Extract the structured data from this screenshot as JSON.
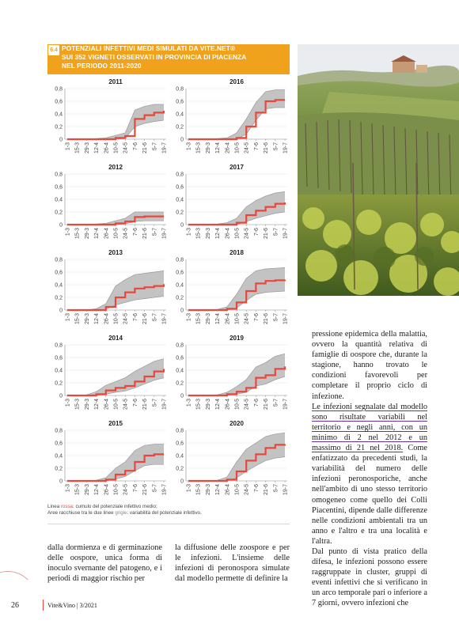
{
  "figure": {
    "badge": "6.4",
    "title_lines": [
      "POTENZIALI INFETTIVI MEDI SIMULATI DA VITE.NET®",
      "SUI 352 VIGNETI OSSERVATI IN PROVINCIA DI PIACENZA",
      "NEL PERIODO 2011-2020"
    ],
    "legend_line1_prefix": "Linea ",
    "legend_line1_color": "rossa",
    "legend_line1_suffix": ": cumulo del potenziale infettivo medio;",
    "legend_line2_prefix": "Aree racchiuse tra le due linee ",
    "legend_line2_color": "grigie",
    "legend_line2_suffix": ": variabilità del potenziale infettivo.",
    "colors": {
      "header": "#f0a21c",
      "mean_line": "#e9473c",
      "band": "#bdbdbd"
    }
  },
  "chart_data": [
    {
      "type": "area",
      "title": "2011",
      "categories": [
        "1-3",
        "15-3",
        "29-3",
        "12-4",
        "26-4",
        "10-5",
        "24-5",
        "7-6",
        "21-6",
        "5-7",
        "19-7"
      ],
      "ylim": [
        0,
        0.8
      ],
      "yticks": [
        "0,8",
        "0,6",
        "0,4",
        "0,2",
        "0"
      ],
      "series": [
        {
          "values": [
            0,
            0,
            0,
            0,
            0,
            0.02,
            0.05,
            0.32,
            0.38,
            0.42,
            0.45
          ]
        },
        {
          "values": [
            0,
            0,
            0,
            0.01,
            0.02,
            0.06,
            0.1,
            0.46,
            0.52,
            0.55,
            0.55
          ]
        },
        {
          "values": [
            0,
            0,
            0,
            0,
            0,
            0,
            0.01,
            0.2,
            0.25,
            0.28,
            0.3
          ]
        }
      ]
    },
    {
      "type": "area",
      "title": "2016",
      "categories": [
        "1-3",
        "15-3",
        "29-3",
        "12-4",
        "26-4",
        "10-5",
        "24-5",
        "7-6",
        "21-6",
        "5-7",
        "19-7"
      ],
      "ylim": [
        0,
        0.8
      ],
      "yticks": [
        "0,8",
        "0,6",
        "0,4",
        "0,2",
        "0"
      ],
      "series": [
        {
          "values": [
            0,
            0,
            0,
            0,
            0,
            0.02,
            0.2,
            0.42,
            0.6,
            0.62,
            0.62
          ]
        },
        {
          "values": [
            0,
            0,
            0,
            0.01,
            0.02,
            0.1,
            0.32,
            0.58,
            0.75,
            0.78,
            0.78
          ]
        },
        {
          "values": [
            0,
            0,
            0,
            0,
            0,
            0,
            0.08,
            0.3,
            0.48,
            0.5,
            0.5
          ]
        }
      ]
    },
    {
      "type": "area",
      "title": "2012",
      "categories": [
        "1-3",
        "15-3",
        "29-3",
        "12-4",
        "26-4",
        "10-5",
        "24-5",
        "7-6",
        "21-6",
        "5-7",
        "19-7"
      ],
      "ylim": [
        0,
        0.8
      ],
      "yticks": [
        "0,8",
        "0,6",
        "0,4",
        "0,2",
        "0"
      ],
      "series": [
        {
          "values": [
            0,
            0,
            0,
            0,
            0,
            0.02,
            0.05,
            0.12,
            0.13,
            0.13,
            0.13
          ]
        },
        {
          "values": [
            0,
            0,
            0,
            0.01,
            0.02,
            0.06,
            0.1,
            0.2,
            0.2,
            0.2,
            0.2
          ]
        },
        {
          "values": [
            0,
            0,
            0,
            0,
            0,
            0,
            0.01,
            0.05,
            0.06,
            0.06,
            0.06
          ]
        }
      ]
    },
    {
      "type": "area",
      "title": "2017",
      "categories": [
        "1-3",
        "15-3",
        "29-3",
        "12-4",
        "26-4",
        "10-5",
        "24-5",
        "7-6",
        "21-6",
        "5-7",
        "19-7"
      ],
      "ylim": [
        0,
        0.8
      ],
      "yticks": [
        "0,8",
        "0,6",
        "0,4",
        "0,2",
        "0"
      ],
      "series": [
        {
          "values": [
            0,
            0,
            0,
            0,
            0,
            0.03,
            0.15,
            0.22,
            0.28,
            0.33,
            0.35
          ]
        },
        {
          "values": [
            0,
            0,
            0,
            0.01,
            0.03,
            0.1,
            0.28,
            0.38,
            0.45,
            0.5,
            0.52
          ]
        },
        {
          "values": [
            0,
            0,
            0,
            0,
            0,
            0,
            0.05,
            0.1,
            0.14,
            0.18,
            0.2
          ]
        }
      ]
    },
    {
      "type": "area",
      "title": "2013",
      "categories": [
        "1-3",
        "15-3",
        "29-3",
        "12-4",
        "26-4",
        "10-5",
        "24-5",
        "7-6",
        "21-6",
        "5-7",
        "19-7"
      ],
      "ylim": [
        0,
        0.8
      ],
      "yticks": [
        "0,8",
        "0,6",
        "0,4",
        "0,2",
        "0"
      ],
      "series": [
        {
          "values": [
            0,
            0,
            0,
            0,
            0.05,
            0.2,
            0.28,
            0.34,
            0.36,
            0.38,
            0.41
          ]
        },
        {
          "values": [
            0,
            0,
            0,
            0.02,
            0.1,
            0.38,
            0.48,
            0.56,
            0.58,
            0.6,
            0.62
          ]
        },
        {
          "values": [
            0,
            0,
            0,
            0,
            0.01,
            0.08,
            0.12,
            0.16,
            0.18,
            0.2,
            0.22
          ]
        }
      ]
    },
    {
      "type": "area",
      "title": "2018",
      "categories": [
        "1-3",
        "15-3",
        "29-3",
        "12-4",
        "26-4",
        "10-5",
        "24-5",
        "7-6",
        "21-6",
        "5-7",
        "19-7"
      ],
      "ylim": [
        0,
        0.8
      ],
      "yticks": [
        "0,8",
        "0,6",
        "0,4",
        "0,2",
        "0"
      ],
      "series": [
        {
          "values": [
            0,
            0,
            0,
            0,
            0.02,
            0.12,
            0.3,
            0.42,
            0.46,
            0.47,
            0.48
          ]
        },
        {
          "values": [
            0,
            0,
            0,
            0.01,
            0.05,
            0.25,
            0.5,
            0.62,
            0.65,
            0.66,
            0.67
          ]
        },
        {
          "values": [
            0,
            0,
            0,
            0,
            0,
            0.03,
            0.15,
            0.25,
            0.28,
            0.29,
            0.3
          ]
        }
      ]
    },
    {
      "type": "area",
      "title": "2014",
      "categories": [
        "1-3",
        "15-3",
        "29-3",
        "12-4",
        "26-4",
        "10-5",
        "24-5",
        "7-6",
        "21-6",
        "5-7",
        "19-7"
      ],
      "ylim": [
        0,
        0.8
      ],
      "yticks": [
        "0,8",
        "0,6",
        "0,4",
        "0,2",
        "0"
      ],
      "series": [
        {
          "values": [
            0,
            0,
            0,
            0.02,
            0.08,
            0.12,
            0.15,
            0.22,
            0.3,
            0.38,
            0.42
          ]
        },
        {
          "values": [
            0,
            0,
            0.01,
            0.06,
            0.16,
            0.22,
            0.28,
            0.38,
            0.46,
            0.54,
            0.58
          ]
        },
        {
          "values": [
            0,
            0,
            0,
            0,
            0.02,
            0.05,
            0.07,
            0.12,
            0.18,
            0.24,
            0.28
          ]
        }
      ]
    },
    {
      "type": "area",
      "title": "2019",
      "categories": [
        "1-3",
        "15-3",
        "29-3",
        "12-4",
        "26-4",
        "10-5",
        "24-5",
        "7-6",
        "21-6",
        "5-7",
        "19-7"
      ],
      "ylim": [
        0,
        0.8
      ],
      "yticks": [
        "0,8",
        "0,6",
        "0,4",
        "0,2",
        "0"
      ],
      "series": [
        {
          "values": [
            0,
            0,
            0,
            0,
            0.02,
            0.06,
            0.12,
            0.28,
            0.32,
            0.42,
            0.46
          ]
        },
        {
          "values": [
            0,
            0,
            0,
            0.01,
            0.05,
            0.14,
            0.25,
            0.45,
            0.52,
            0.62,
            0.66
          ]
        },
        {
          "values": [
            0,
            0,
            0,
            0,
            0,
            0.02,
            0.05,
            0.15,
            0.18,
            0.25,
            0.3
          ]
        }
      ]
    },
    {
      "type": "area",
      "title": "2015",
      "categories": [
        "1-3",
        "15-3",
        "29-3",
        "12-4",
        "26-4",
        "10-5",
        "24-5",
        "7-6",
        "21-6",
        "5-7",
        "19-7"
      ],
      "ylim": [
        0,
        0.8
      ],
      "yticks": [
        "0,8",
        "0,6",
        "0,4",
        "0,2",
        "0"
      ],
      "series": [
        {
          "values": [
            0,
            0,
            0,
            0,
            0.02,
            0.1,
            0.16,
            0.3,
            0.4,
            0.42,
            0.42
          ]
        },
        {
          "values": [
            0,
            0,
            0,
            0.01,
            0.05,
            0.2,
            0.3,
            0.48,
            0.56,
            0.58,
            0.58
          ]
        },
        {
          "values": [
            0,
            0,
            0,
            0,
            0,
            0.03,
            0.07,
            0.16,
            0.24,
            0.26,
            0.26
          ]
        }
      ]
    },
    {
      "type": "area",
      "title": "2020",
      "categories": [
        "1-3",
        "15-3",
        "29-3",
        "12-4",
        "26-4",
        "10-5",
        "24-5",
        "7-6",
        "21-6",
        "5-7",
        "19-7"
      ],
      "ylim": [
        0,
        0.8
      ],
      "yticks": [
        "0,8",
        "0,6",
        "0,4",
        "0,2",
        "0"
      ],
      "series": [
        {
          "values": [
            0,
            0,
            0,
            0,
            0.02,
            0.15,
            0.32,
            0.42,
            0.52,
            0.57,
            0.58
          ]
        },
        {
          "values": [
            0,
            0,
            0,
            0.01,
            0.06,
            0.3,
            0.5,
            0.6,
            0.7,
            0.74,
            0.76
          ]
        },
        {
          "values": [
            0,
            0,
            0,
            0,
            0,
            0.05,
            0.15,
            0.24,
            0.32,
            0.36,
            0.38
          ]
        }
      ]
    }
  ],
  "left_columns": {
    "col1": "dalla dormienza e di germinazione delle oospore, unica forma di inoculo svernante del patogeno, e i periodi di maggior rischio per",
    "col2": "la diffusione delle zoospore e per le infezioni. L'insieme delle infezioni di peronospora simulate dal modello permette di definire la"
  },
  "right_column": {
    "para1": "pressione epidemica della malattia, ovvero la quantità relativa di famiglie di oospore che, durante la stagione, hanno trovato le condizioni favorevoli per completare il proprio ciclo di infezione.",
    "para2_highlight": "Le infezioni segnalate dal modello sono risultate variabili nel territorio e negli anni, con un minimo di 2 nel 2012 e un massimo di 21 nel 2018.",
    "para2_rest": " Come enfatizzato da precedenti studi, la variabilità del numero delle infezioni peronosporiche, anche nell'ambito di uno stesso territorio omogeneo come quello dei Colli Piacentini, dipende dalle differenze nelle condizioni ambientali tra un anno e l'altro e tra una località e l'altra.",
    "para3": "Dal punto di vista pratico della difesa, le infezioni possono essere raggruppate in cluster, gruppi di eventi infettivi che si verificano in un arco temporale pari o inferiore a 7 giorni, ovvero infezioni che"
  },
  "footer": {
    "page_number": "26",
    "magazine": "Vite&Vino | 3/2021"
  }
}
